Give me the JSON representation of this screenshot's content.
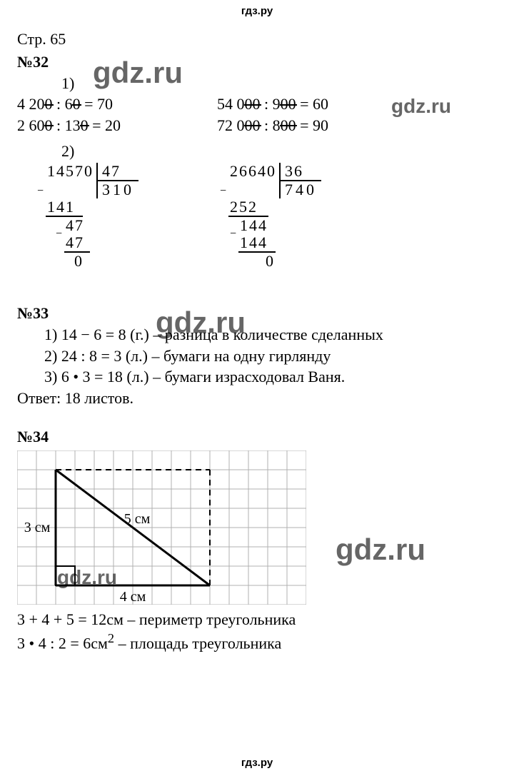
{
  "site": {
    "header": "гдз.ру",
    "footer": "гдз.ру"
  },
  "watermarks": {
    "w1": "gdz.ru",
    "w2": "gdz.ru",
    "w3": "gdz.ru",
    "w4": "gdz.ru",
    "w5": "gdz.ru"
  },
  "page": {
    "ref": "Стр. 65"
  },
  "ex32": {
    "head": "№32",
    "sub1": "1)",
    "rowsL": {
      "r1": {
        "a": "4 20",
        "az": "0",
        "op": " : 6",
        "bz": "0",
        "eq": " = 70"
      },
      "r2": {
        "a": "2 60",
        "az": "0",
        "op": " : 13",
        "bz": "0",
        "eq": " = 20"
      }
    },
    "rowsR": {
      "r1": {
        "a": "54 0",
        "az": "00",
        "op": " : 9",
        "bz": "00",
        "eq": " = 60"
      },
      "r2": {
        "a": "72 0",
        "az": "00",
        "op": " : 8",
        "bz": "00",
        "eq": " = 90"
      }
    },
    "sub2": "2)",
    "ld1": {
      "dividend": "14570",
      "divisor": "47",
      "quot": "310",
      "w1": "141",
      "w2": "47",
      "w3": "47",
      "w4": "0"
    },
    "ld2": {
      "dividend": "26640",
      "divisor": "36",
      "quot": "740",
      "w1": "252",
      "w2": "144",
      "w3": "144",
      "w4": "0"
    }
  },
  "ex33": {
    "head": "№33",
    "l1": "1)  14 − 6 = 8 (г.) – разница в количестве сделанных",
    "l2": "2)  24 : 8 = 3 (л.) – бумаги на одну гирлянду",
    "l3": "3)  6 • 3 = 18 (л.) – бумаги израсходовал Ваня.",
    "ans": "Ответ: 18 листов."
  },
  "ex34": {
    "head": "№34",
    "diagram": {
      "cell": 27,
      "cols": 15,
      "rows": 8,
      "label_left": "3 см",
      "label_bottom": "4 см",
      "label_hyp": "5 см",
      "colors": {
        "grid": "#b0b0b0",
        "line": "#000000",
        "bg": "#ffffff"
      }
    },
    "l1": "3 + 4 + 5 = 12см – периметр треугольника",
    "l2": "3 • 4 : 2 = 6см",
    "l2sup": "2",
    "l2b": " – площадь треугольника"
  }
}
